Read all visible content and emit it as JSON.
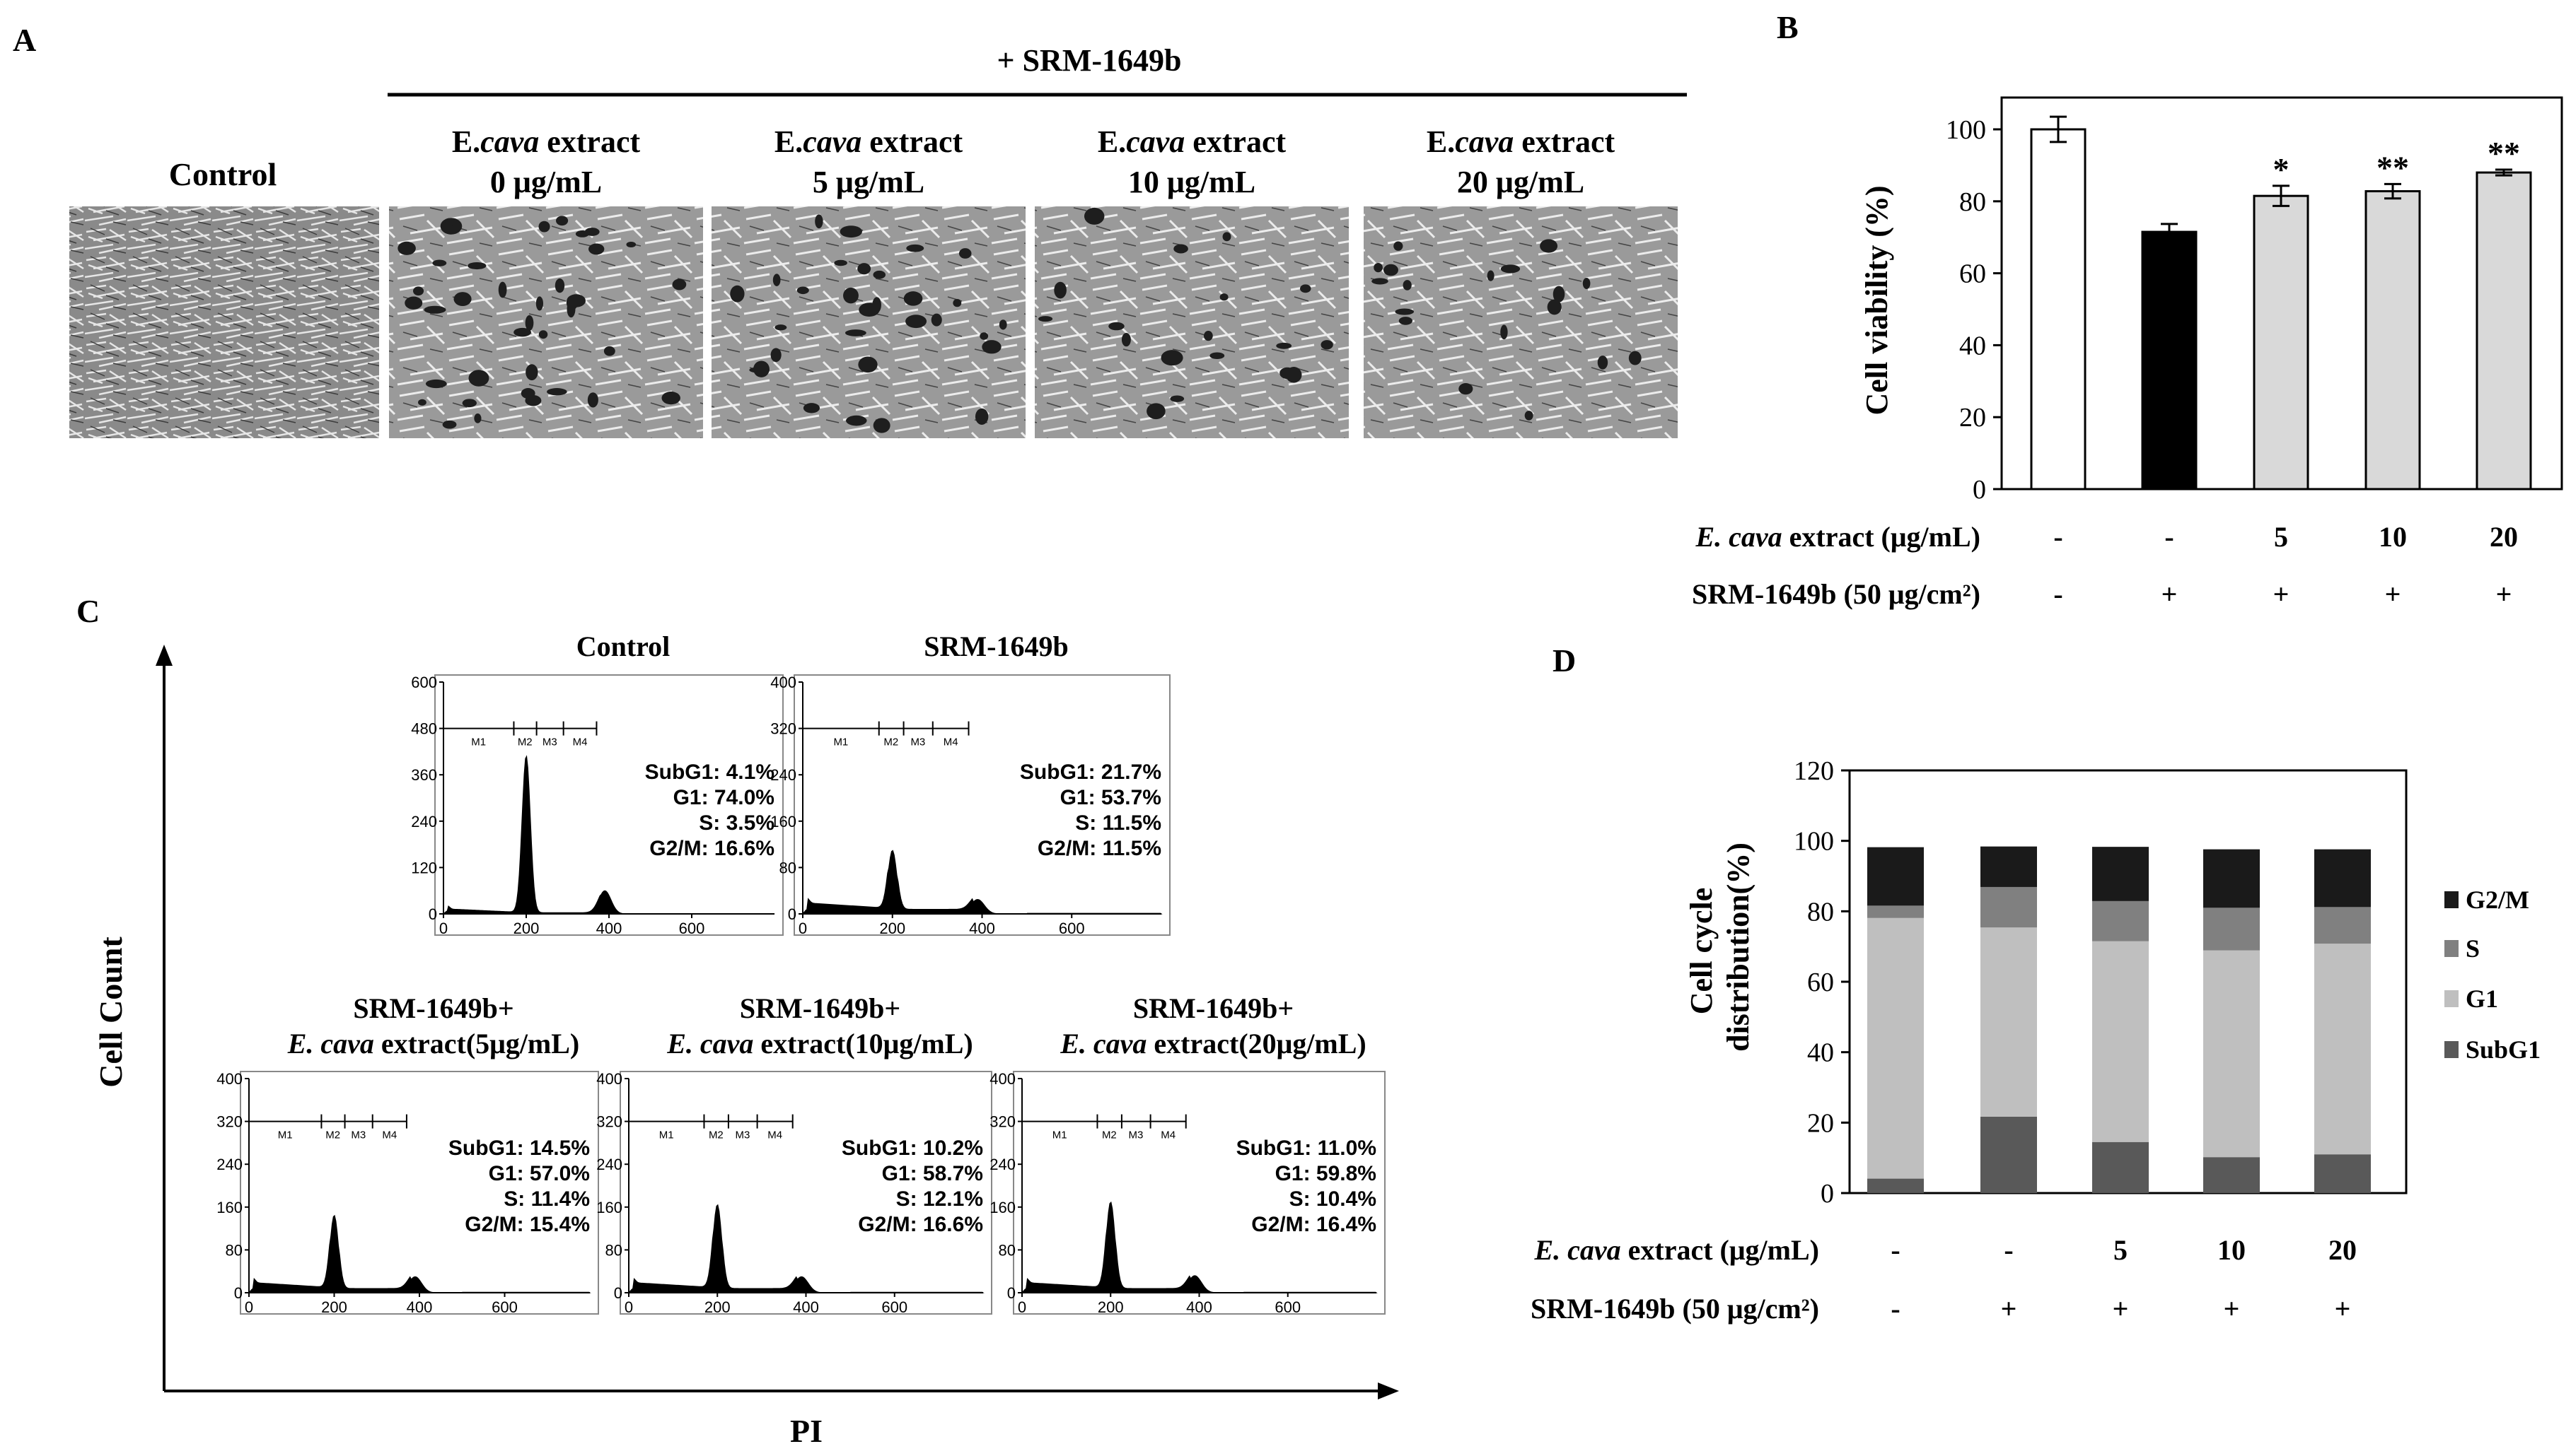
{
  "panels": {
    "A": {
      "letter": "A",
      "treatment_header": "+ SRM-1649b",
      "control_label": "Control",
      "images": [
        {
          "line1": "E.",
          "line1_italic": "cava",
          "line1_tail": " extract",
          "line2": "0 μg/mL",
          "density": "debris-heavy"
        },
        {
          "line1": "E.",
          "line1_italic": "cava",
          "line1_tail": " extract",
          "line2": "5 μg/mL",
          "density": "debris-medium"
        },
        {
          "line1": "E.",
          "line1_italic": "cava",
          "line1_tail": " extract",
          "line2": "10 μg/mL",
          "density": "debris-light"
        },
        {
          "line1": "E.",
          "line1_italic": "cava",
          "line1_tail": " extract",
          "line2": "20 μg/mL",
          "density": "debris-light"
        }
      ]
    },
    "B": {
      "letter": "B",
      "ylabel": "Cell viability (%)",
      "row1_label_italic": "E. cava",
      "row1_label_tail": " extract (μg/mL)",
      "row2_label": "SRM-1649b (50 μg/cm²)",
      "row1_values": [
        "-",
        "-",
        "5",
        "10",
        "20"
      ],
      "row2_values": [
        "-",
        "+",
        "+",
        "+",
        "+"
      ]
    },
    "C": {
      "letter": "C",
      "ylabel": "Cell Count",
      "xlabel": "PI",
      "histograms": [
        {
          "title1": "Control",
          "title2_italic": "",
          "title2_tail": "",
          "ymax": 600,
          "yticks": [
            "0",
            "120",
            "240",
            "360",
            "480",
            "600"
          ],
          "marker_level": "480",
          "xticks": [
            "0",
            "200",
            "400",
            "600"
          ],
          "peak_g1": 410,
          "peak_g2": 60,
          "stats": [
            "SubG1: 4.1%",
            "G1: 74.0%",
            "S: 3.5%",
            "G2/M: 16.6%"
          ],
          "markers": [
            "M1",
            "M2",
            "M3",
            "M4"
          ]
        },
        {
          "title1": "SRM-1649b",
          "title2_italic": "",
          "title2_tail": "",
          "ymax": 400,
          "yticks": [
            "0",
            "80",
            "160",
            "240",
            "320",
            "400"
          ],
          "marker_level": "320",
          "xticks": [
            "0",
            "200",
            "400",
            "600"
          ],
          "peak_g1": 110,
          "peak_g2": 25,
          "stats": [
            "SubG1: 21.7%",
            "G1: 53.7%",
            "S: 11.5%",
            "G2/M: 11.5%"
          ],
          "markers": [
            "M1",
            "M2",
            "M3",
            "M4"
          ]
        },
        {
          "title1": "SRM-1649b+",
          "title2_italic": "E. cava",
          "title2_tail": " extract(5μg/mL)",
          "ymax": 400,
          "yticks": [
            "0",
            "80",
            "160",
            "240",
            "320",
            "400"
          ],
          "marker_level": "320",
          "xticks": [
            "0",
            "200",
            "400",
            "600"
          ],
          "peak_g1": 145,
          "peak_g2": 30,
          "stats": [
            "SubG1: 14.5%",
            "G1: 57.0%",
            "S: 11.4%",
            "G2/M: 15.4%"
          ],
          "markers": [
            "M1",
            "M2",
            "M3",
            "M4"
          ]
        },
        {
          "title1": "SRM-1649b+",
          "title2_italic": "E. cava",
          "title2_tail": " extract(10μg/mL)",
          "ymax": 400,
          "yticks": [
            "0",
            "80",
            "160",
            "240",
            "320",
            "400"
          ],
          "marker_level": "320",
          "xticks": [
            "0",
            "200",
            "400",
            "600"
          ],
          "peak_g1": 165,
          "peak_g2": 30,
          "stats": [
            "SubG1: 10.2%",
            "G1: 58.7%",
            "S: 12.1%",
            "G2/M: 16.6%"
          ],
          "markers": [
            "M1",
            "M2",
            "M3",
            "M4"
          ]
        },
        {
          "title1": "SRM-1649b+",
          "title2_italic": "E. cava",
          "title2_tail": " extract(20μg/mL)",
          "ymax": 400,
          "yticks": [
            "0",
            "80",
            "160",
            "240",
            "320",
            "400"
          ],
          "marker_level": "320",
          "xticks": [
            "0",
            "200",
            "400",
            "600"
          ],
          "peak_g1": 170,
          "peak_g2": 32,
          "stats": [
            "SubG1: 11.0%",
            "G1: 59.8%",
            "S: 10.4%",
            "G2/M: 16.4%"
          ],
          "markers": [
            "M1",
            "M2",
            "M3",
            "M4"
          ]
        }
      ]
    },
    "D": {
      "letter": "D",
      "ylabel_line1": "Cell cycle",
      "ylabel_line2": "distribution(%)",
      "row1_label_italic": "E. cava",
      "row1_label_tail": " extract (μg/mL)",
      "row2_label": "SRM-1649b (50 μg/cm²)",
      "row1_values": [
        "-",
        "-",
        "5",
        "10",
        "20"
      ],
      "row2_values": [
        "-",
        "+",
        "+",
        "+",
        "+"
      ]
    }
  },
  "chart_data": [
    {
      "panel": "B",
      "type": "bar",
      "categories": [
        "1",
        "2",
        "3",
        "4",
        "5"
      ],
      "values": [
        100,
        71.5,
        81.5,
        82.8,
        88
      ],
      "errors": [
        3.5,
        2.2,
        2.8,
        2,
        0.8
      ],
      "significance": [
        "",
        "",
        "*",
        "**",
        "**"
      ],
      "bar_colors": [
        "#ffffff",
        "#000000",
        "#d9d9d9",
        "#d9d9d9",
        "#d9d9d9"
      ],
      "title": "",
      "xlabel": "",
      "ylabel": "Cell viability (%)",
      "ylim": [
        0,
        100
      ],
      "yticks": [
        0,
        20,
        40,
        60,
        80,
        100
      ]
    },
    {
      "panel": "D",
      "type": "bar",
      "stacked": true,
      "categories": [
        "1",
        "2",
        "3",
        "4",
        "5"
      ],
      "series": [
        {
          "name": "SubG1",
          "color": "#595959",
          "values": [
            4.1,
            21.7,
            14.5,
            10.2,
            11.0
          ]
        },
        {
          "name": "G1",
          "color": "#bfbfbf",
          "values": [
            74.0,
            53.7,
            57.0,
            58.7,
            59.8
          ]
        },
        {
          "name": "S",
          "color": "#808080",
          "values": [
            3.5,
            11.5,
            11.4,
            12.1,
            10.4
          ]
        },
        {
          "name": "G2/M",
          "color": "#1a1a1a",
          "values": [
            16.6,
            11.5,
            15.4,
            16.6,
            16.4
          ]
        }
      ],
      "legend_order": [
        "G2/M",
        "S",
        "G1",
        "SubG1"
      ],
      "legend_position": "right",
      "title": "",
      "xlabel": "",
      "ylabel": "Cell cycle distribution(%)",
      "ylim": [
        0,
        120
      ],
      "yticks": [
        0,
        20,
        40,
        60,
        80,
        100,
        120
      ]
    }
  ]
}
